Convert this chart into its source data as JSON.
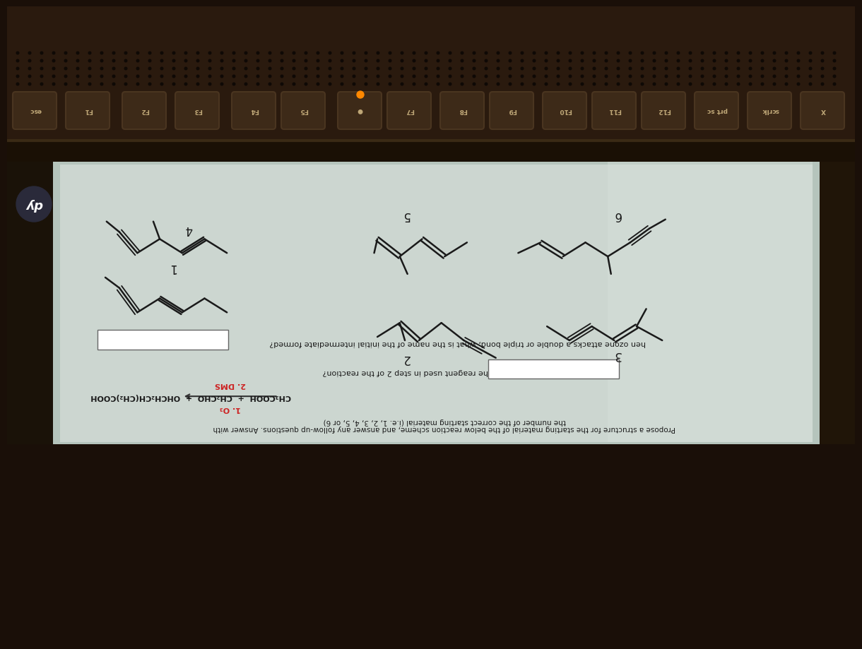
{
  "bg_color": "#1a0f08",
  "keyboard_color": "#2a1a0e",
  "key_color": "#3d2a18",
  "key_edge": "#4a3520",
  "bezel_color": "#0e0a05",
  "screen_bg": "#b5c4bc",
  "paper_bg": "#ccd6d0",
  "paper_light": "#dce6e0",
  "hp_circle": "#2a2a3a",
  "q1_text": "hen ozone attacks a double or triple bond, what is the name of the initial intermediate formed?",
  "q2_text": "hat is the name of the reagent used in step 2 of the reaction?",
  "title_line1": "Propose a structure for the starting material of the below reaction scheme, and answer any follow-up questions. Answer with",
  "title_line2": "the number of the correct starting material (i.e. 1, 2, 3, 4, 5, or 6)",
  "reaction_products": "CH₃COOH  +  CH₂CHO  +  OHCH₂CH(CH₂)COOH",
  "step1": "1. O₃",
  "step2": "2. DMS",
  "mol_labels": [
    "1",
    "2",
    "3",
    "4",
    "5",
    "6"
  ],
  "bond_color": "#1a1a1a",
  "text_color": "#1a1a1a",
  "box_color": "#ffffff",
  "key_labels": [
    "esc",
    "F1",
    "F2",
    "F3",
    "F4",
    "F5",
    "●",
    "F7",
    "F8",
    "F9",
    "F10",
    "F11",
    "F12",
    "prt sc",
    "scrlk",
    "X"
  ],
  "key_positions": [
    40,
    115,
    195,
    270,
    350,
    420,
    500,
    570,
    645,
    715,
    790,
    860,
    930,
    1005,
    1080,
    1155
  ]
}
